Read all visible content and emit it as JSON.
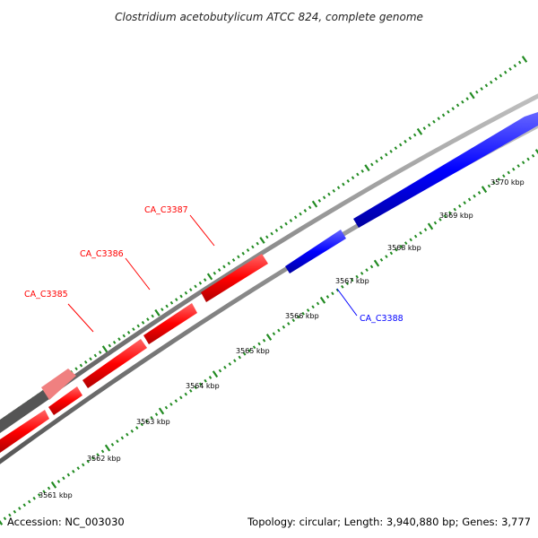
{
  "title": "Clostridium acetobutylicum ATCC 824, complete genome",
  "footer": {
    "accession": "Accession: NC_003030",
    "summary": "Topology: circular; Length: 3,940,880 bp; Genes: 3,777"
  },
  "colors": {
    "forward_gene": "#ff0000",
    "reverse_gene": "#0000ff",
    "backbone": "#808080",
    "ticks": "#228b22",
    "highlight_gene": "#f08080",
    "dark_segment": "#555555"
  },
  "tick_labels": [
    "3561 kbp",
    "3562 kbp",
    "3563 kbp",
    "3564 kbp",
    "3565 kbp",
    "3566 kbp",
    "3567 kbp",
    "3568 kbp",
    "3569 kbp",
    "3570 kbp"
  ],
  "genes": [
    {
      "name": "CA_C3385",
      "strand": "forward"
    },
    {
      "name": "CA_C3386",
      "strand": "forward"
    },
    {
      "name": "CA_C3387",
      "strand": "forward"
    },
    {
      "name": "CA_C3388",
      "strand": "reverse"
    }
  ]
}
